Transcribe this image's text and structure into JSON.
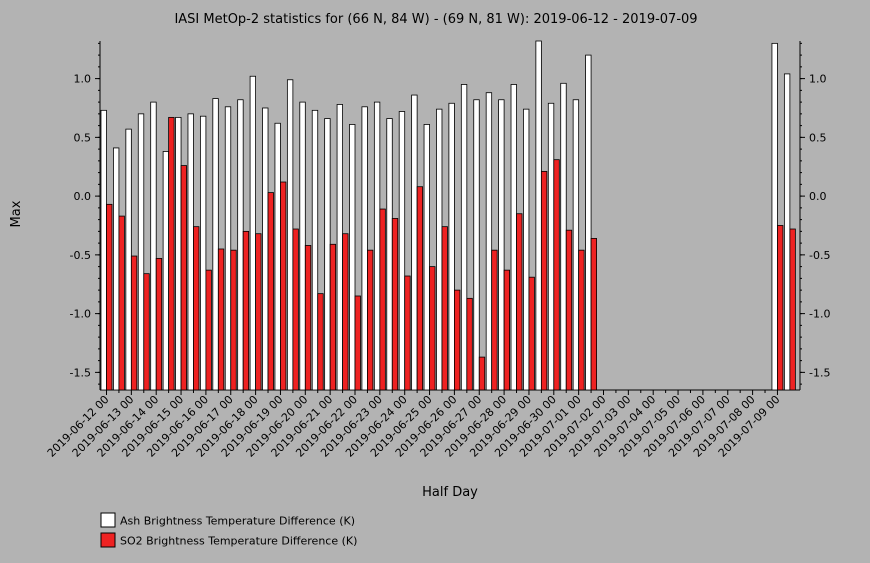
{
  "chart_data": {
    "type": "bar",
    "title": "IASI MetOp-2 statistics for (66 N, 84 W) - (69 N, 81 W): 2019-06-12 - 2019-07-09",
    "xlabel": "Half Day",
    "ylabel": "Max",
    "ylim": [
      -1.65,
      1.32
    ],
    "yticks": [
      1.0,
      0.5,
      0.0,
      -0.5,
      -1.0,
      -1.5
    ],
    "ytick_labels": [
      "1.0",
      "0.5",
      "0.0",
      "-0.5",
      "-1.0",
      "-1.5"
    ],
    "xticks": [
      "2019-06-12 00",
      "2019-06-13 00",
      "2019-06-14 00",
      "2019-06-15 00",
      "2019-06-16 00",
      "2019-06-17 00",
      "2019-06-18 00",
      "2019-06-19 00",
      "2019-06-20 00",
      "2019-06-21 00",
      "2019-06-22 00",
      "2019-06-23 00",
      "2019-06-24 00",
      "2019-06-25 00",
      "2019-06-26 00",
      "2019-06-27 00",
      "2019-06-28 00",
      "2019-06-29 00",
      "2019-06-30 00",
      "2019-07-01 00",
      "2019-07-02 00",
      "2019-07-03 00",
      "2019-07-04 00",
      "2019-07-05 00",
      "2019-07-06 00",
      "2019-07-07 00",
      "2019-07-08 00",
      "2019-07-09 00"
    ],
    "legend_position": "bottom-left",
    "series": [
      {
        "name": "Ash Brightness Temperature Difference (K)",
        "color": "#ffffff",
        "values": [
          0.73,
          0.41,
          0.57,
          0.7,
          0.8,
          0.38,
          0.67,
          0.7,
          0.68,
          0.83,
          0.76,
          0.82,
          1.02,
          0.75,
          0.62,
          0.99,
          0.8,
          0.73,
          0.66,
          0.78,
          0.61,
          0.76,
          0.8,
          0.66,
          0.72,
          0.86,
          0.61,
          0.74,
          0.79,
          0.95,
          0.82,
          0.88,
          0.82,
          0.95,
          0.74,
          1.32,
          0.79,
          0.96,
          0.82,
          1.2,
          null,
          null,
          null,
          null,
          null,
          null,
          null,
          null,
          null,
          null,
          null,
          null,
          null,
          null,
          1.3,
          1.04
        ]
      },
      {
        "name": "SO2 Brightness Temperature Difference (K)",
        "color": "#ee2222",
        "values": [
          -0.07,
          -0.17,
          -0.51,
          -0.66,
          -0.53,
          0.67,
          0.26,
          -0.26,
          -0.63,
          -0.45,
          -0.46,
          -0.3,
          -0.32,
          0.03,
          0.12,
          -0.28,
          -0.42,
          -0.83,
          -0.41,
          -0.32,
          -0.85,
          -0.46,
          -0.11,
          -0.19,
          -0.68,
          0.08,
          -0.6,
          -0.26,
          -0.8,
          -0.87,
          -1.37,
          -0.46,
          -0.63,
          -0.15,
          -0.69,
          0.21,
          0.31,
          -0.29,
          -0.46,
          -0.36,
          null,
          null,
          null,
          null,
          null,
          null,
          null,
          null,
          null,
          null,
          null,
          null,
          null,
          null,
          -0.25,
          -0.28
        ]
      }
    ]
  }
}
